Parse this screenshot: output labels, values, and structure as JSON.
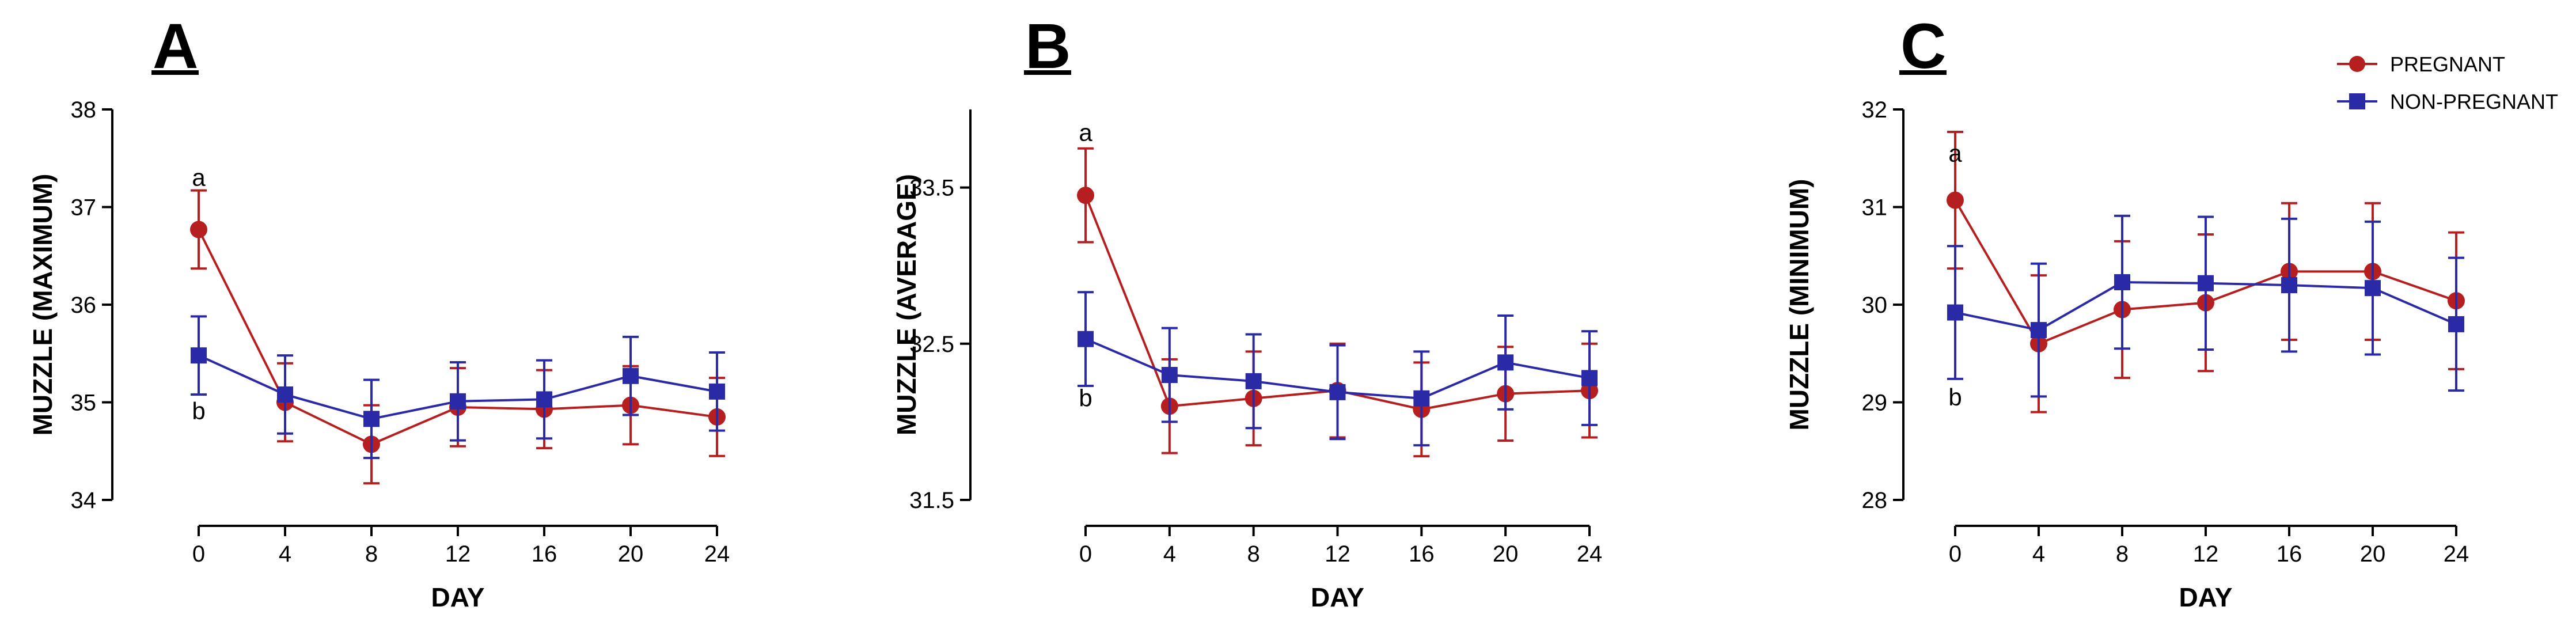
{
  "legend": {
    "series": [
      {
        "name": "PREGNANT",
        "color": "#b51f1f",
        "marker": "circle"
      },
      {
        "name": "NON-PREGNANT",
        "color": "#2b2aa6",
        "marker": "square"
      }
    ]
  },
  "chart_data": [
    {
      "type": "line",
      "panel_label": "A",
      "title": "",
      "xlabel": "DAY",
      "ylabel": "MUZZLE (MAXIMUM)",
      "x": [
        0,
        4,
        8,
        12,
        16,
        20,
        24
      ],
      "x_tick_labels": [
        "0",
        "4",
        "8",
        "12",
        "16",
        "20",
        "24"
      ],
      "ylim": [
        34,
        38
      ],
      "y_ticks": [
        34,
        35,
        36,
        37,
        38
      ],
      "y_tick_labels": [
        "34",
        "35",
        "36",
        "37",
        "38"
      ],
      "series": [
        {
          "name": "PREGNANT",
          "values": [
            36.77,
            35.0,
            34.57,
            34.95,
            34.93,
            34.97,
            34.85
          ],
          "errors": [
            0.4,
            0.4,
            0.4,
            0.4,
            0.4,
            0.4,
            0.4
          ]
        },
        {
          "name": "NON-PREGNANT",
          "values": [
            35.48,
            35.08,
            34.83,
            35.01,
            35.03,
            35.27,
            35.11
          ],
          "errors": [
            0.4,
            0.4,
            0.4,
            0.4,
            0.4,
            0.4,
            0.4
          ]
        }
      ],
      "annotations": [
        {
          "text": "a",
          "x": 0,
          "y": 37.3
        },
        {
          "text": "b",
          "x": 0,
          "y": 34.91
        }
      ]
    },
    {
      "type": "line",
      "panel_label": "B",
      "title": "",
      "xlabel": "DAY",
      "ylabel": "MUZZLE (AVERAGE)",
      "x": [
        0,
        4,
        8,
        12,
        16,
        20,
        24
      ],
      "x_tick_labels": [
        "0",
        "4",
        "8",
        "12",
        "16",
        "20",
        "24"
      ],
      "ylim": [
        31.5,
        34.0
      ],
      "y_ticks": [
        31.5,
        32.5,
        33.5
      ],
      "y_tick_labels": [
        "31.5",
        "32.5",
        "33.5"
      ],
      "series": [
        {
          "name": "PREGNANT",
          "values": [
            33.45,
            32.1,
            32.15,
            32.2,
            32.08,
            32.18,
            32.2
          ],
          "errors": [
            0.3,
            0.3,
            0.3,
            0.3,
            0.3,
            0.3,
            0.3
          ]
        },
        {
          "name": "NON-PREGNANT",
          "values": [
            32.53,
            32.3,
            32.26,
            32.19,
            32.15,
            32.38,
            32.28
          ],
          "errors": [
            0.3,
            0.3,
            0.3,
            0.3,
            0.3,
            0.3,
            0.3
          ]
        }
      ],
      "annotations": [
        {
          "text": "a",
          "x": 0,
          "y": 33.85
        },
        {
          "text": "b",
          "x": 0,
          "y": 32.15
        }
      ]
    },
    {
      "type": "line",
      "panel_label": "C",
      "title": "",
      "xlabel": "DAY",
      "ylabel": "MUZZLE (MINIMUM)",
      "x": [
        0,
        4,
        8,
        12,
        16,
        20,
        24
      ],
      "x_tick_labels": [
        "0",
        "4",
        "8",
        "12",
        "16",
        "20",
        "24"
      ],
      "ylim": [
        28,
        32
      ],
      "y_ticks": [
        28,
        29,
        30,
        31,
        32
      ],
      "y_tick_labels": [
        "28",
        "29",
        "30",
        "31",
        "32"
      ],
      "series": [
        {
          "name": "PREGNANT",
          "values": [
            31.07,
            29.6,
            29.95,
            30.02,
            30.34,
            30.34,
            30.04
          ],
          "errors": [
            0.7,
            0.7,
            0.7,
            0.7,
            0.7,
            0.7,
            0.7
          ]
        },
        {
          "name": "NON-PREGNANT",
          "values": [
            29.92,
            29.74,
            30.23,
            30.22,
            30.2,
            30.17,
            29.8
          ],
          "errors": [
            0.68,
            0.68,
            0.68,
            0.68,
            0.68,
            0.68,
            0.68
          ]
        }
      ],
      "annotations": [
        {
          "text": "a",
          "x": 0,
          "y": 31.55
        },
        {
          "text": "b",
          "x": 0,
          "y": 29.05
        }
      ]
    }
  ]
}
